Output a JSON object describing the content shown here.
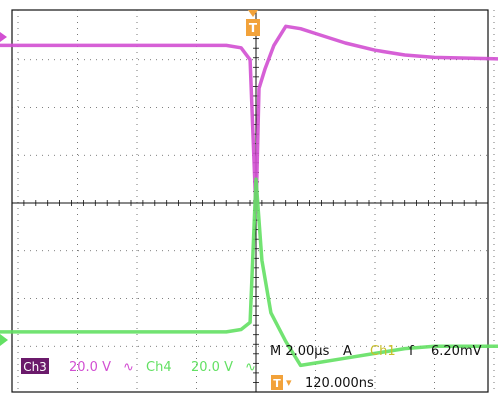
{
  "chart_data": {
    "type": "line",
    "x_unit": "µs",
    "y_unit": "div",
    "grid": true,
    "x_range": [
      -10,
      10
    ],
    "y_range": [
      -4,
      4
    ],
    "series": [
      {
        "name": "Ch3",
        "color": "#d24fd2",
        "x": [
          -10,
          -1.0,
          -0.5,
          -0.2,
          0.0,
          0.1,
          0.3,
          0.6,
          1.0,
          1.5,
          2.0,
          3.0,
          4.0,
          5.0,
          6.0,
          8.0,
          10.0
        ],
        "y": [
          3.3,
          3.3,
          3.25,
          3.0,
          -0.2,
          2.4,
          2.8,
          3.3,
          3.7,
          3.65,
          3.55,
          3.35,
          3.2,
          3.1,
          3.05,
          3.02,
          3.0
        ]
      },
      {
        "name": "Ch4",
        "color": "#63e063",
        "x": [
          -10,
          -1.0,
          -0.5,
          -0.2,
          0.0,
          0.2,
          0.5,
          1.0,
          1.5,
          2.0,
          3.0,
          4.0,
          5.0,
          6.0,
          8.0,
          10.0
        ],
        "y": [
          -2.7,
          -2.7,
          -2.65,
          -2.5,
          0.5,
          -1.2,
          -2.3,
          -2.9,
          -3.4,
          -3.35,
          -3.25,
          -3.15,
          -3.05,
          -3.0,
          -3.0,
          -3.0
        ]
      }
    ],
    "markers": {
      "trigger_top": "T",
      "trigger_bottom": "T",
      "trigger_arrow": "▾"
    }
  },
  "status": {
    "ch3_badge": "Ch3",
    "ch3_scale": "20.0 V",
    "ch3_coupling": "∿",
    "ch4_label": "Ch4",
    "ch4_scale": "20.0 V",
    "ch4_coupling": "∿",
    "timebase": "M 2.00µs",
    "trigger_mode": "A",
    "trigger_source": "Ch1",
    "trigger_slope": "ſ",
    "trigger_level": "6.20mV",
    "trigger_position": "120.000ns"
  },
  "colors": {
    "grid": "#111111",
    "ch3": "#d24fd2",
    "ch4": "#63e063",
    "trigger": "#f2a23a",
    "ch1": "#c9bf2a",
    "badge_bg": "#6b1a6b"
  }
}
